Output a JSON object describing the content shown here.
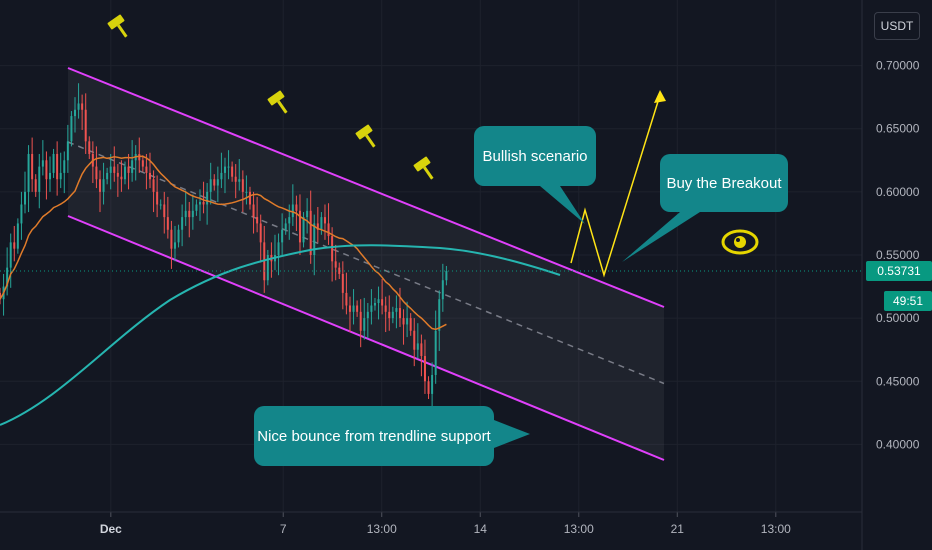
{
  "currency": "USDT",
  "last_price_label": "0.53731",
  "countdown_label": "49:51",
  "callouts": {
    "bullish": "Bullish scenario",
    "breakout": "Buy the Breakout",
    "bounce": "Nice bounce from trendline support"
  },
  "colors": {
    "background": "#131722",
    "up_candle": "#26a69a",
    "down_candle": "#ef5350",
    "channel": "#e040fb",
    "ma_fast": "#e07b2a",
    "ma_slow": "#26b5b0",
    "callout": "#13868a",
    "arrow": "#ffe415",
    "price_tag": "#089981"
  },
  "icons": [
    "gavel-icon",
    "eye-icon"
  ],
  "chart_data": {
    "type": "candlestick",
    "y_ticks": [
      "0.70000",
      "0.65000",
      "0.60000",
      "0.55000",
      "0.50000",
      "0.45000",
      "0.40000"
    ],
    "ylim": [
      0.375,
      0.725
    ],
    "x_ticks": [
      {
        "label": "Dec",
        "bold": true,
        "pos": 0
      },
      {
        "label": "7",
        "bold": false,
        "pos": 84
      },
      {
        "label": "13:00",
        "bold": false,
        "pos": 132
      },
      {
        "label": "14",
        "bold": false,
        "pos": 180
      },
      {
        "label": "13:00",
        "bold": false,
        "pos": 228
      },
      {
        "label": "21",
        "bold": false,
        "pos": 276
      },
      {
        "label": "13:00",
        "bold": false,
        "pos": 324
      }
    ],
    "x_range": [
      -54,
      366
    ],
    "last_price": 0.53731,
    "closes": [
      0.515,
      0.525,
      0.54,
      0.56,
      0.555,
      0.575,
      0.59,
      0.6,
      0.63,
      0.61,
      0.6,
      0.62,
      0.625,
      0.61,
      0.615,
      0.63,
      0.61,
      0.615,
      0.625,
      0.64,
      0.66,
      0.665,
      0.67,
      0.665,
      0.64,
      0.63,
      0.62,
      0.61,
      0.6,
      0.61,
      0.615,
      0.62,
      0.615,
      0.612,
      0.61,
      0.62,
      0.615,
      0.625,
      0.63,
      0.625,
      0.62,
      0.615,
      0.61,
      0.6,
      0.59,
      0.59,
      0.58,
      0.57,
      0.555,
      0.56,
      0.57,
      0.58,
      0.585,
      0.58,
      0.585,
      0.59,
      0.592,
      0.59,
      0.6,
      0.61,
      0.605,
      0.61,
      0.615,
      0.62,
      0.62,
      0.612,
      0.608,
      0.61,
      0.6,
      0.6,
      0.59,
      0.58,
      0.575,
      0.56,
      0.53,
      0.55,
      0.545,
      0.55,
      0.56,
      0.57,
      0.575,
      0.58,
      0.59,
      0.585,
      0.56,
      0.58,
      0.585,
      0.55,
      0.575,
      0.57,
      0.58,
      0.575,
      0.565,
      0.545,
      0.54,
      0.535,
      0.52,
      0.51,
      0.505,
      0.51,
      0.505,
      0.49,
      0.5,
      0.505,
      0.51,
      0.512,
      0.515,
      0.51,
      0.505,
      0.5,
      0.505,
      0.508,
      0.5,
      0.495,
      0.5,
      0.49,
      0.475,
      0.48,
      0.47,
      0.45,
      0.44,
      0.455,
      0.49,
      0.515,
      0.53,
      0.53731
    ]
  }
}
